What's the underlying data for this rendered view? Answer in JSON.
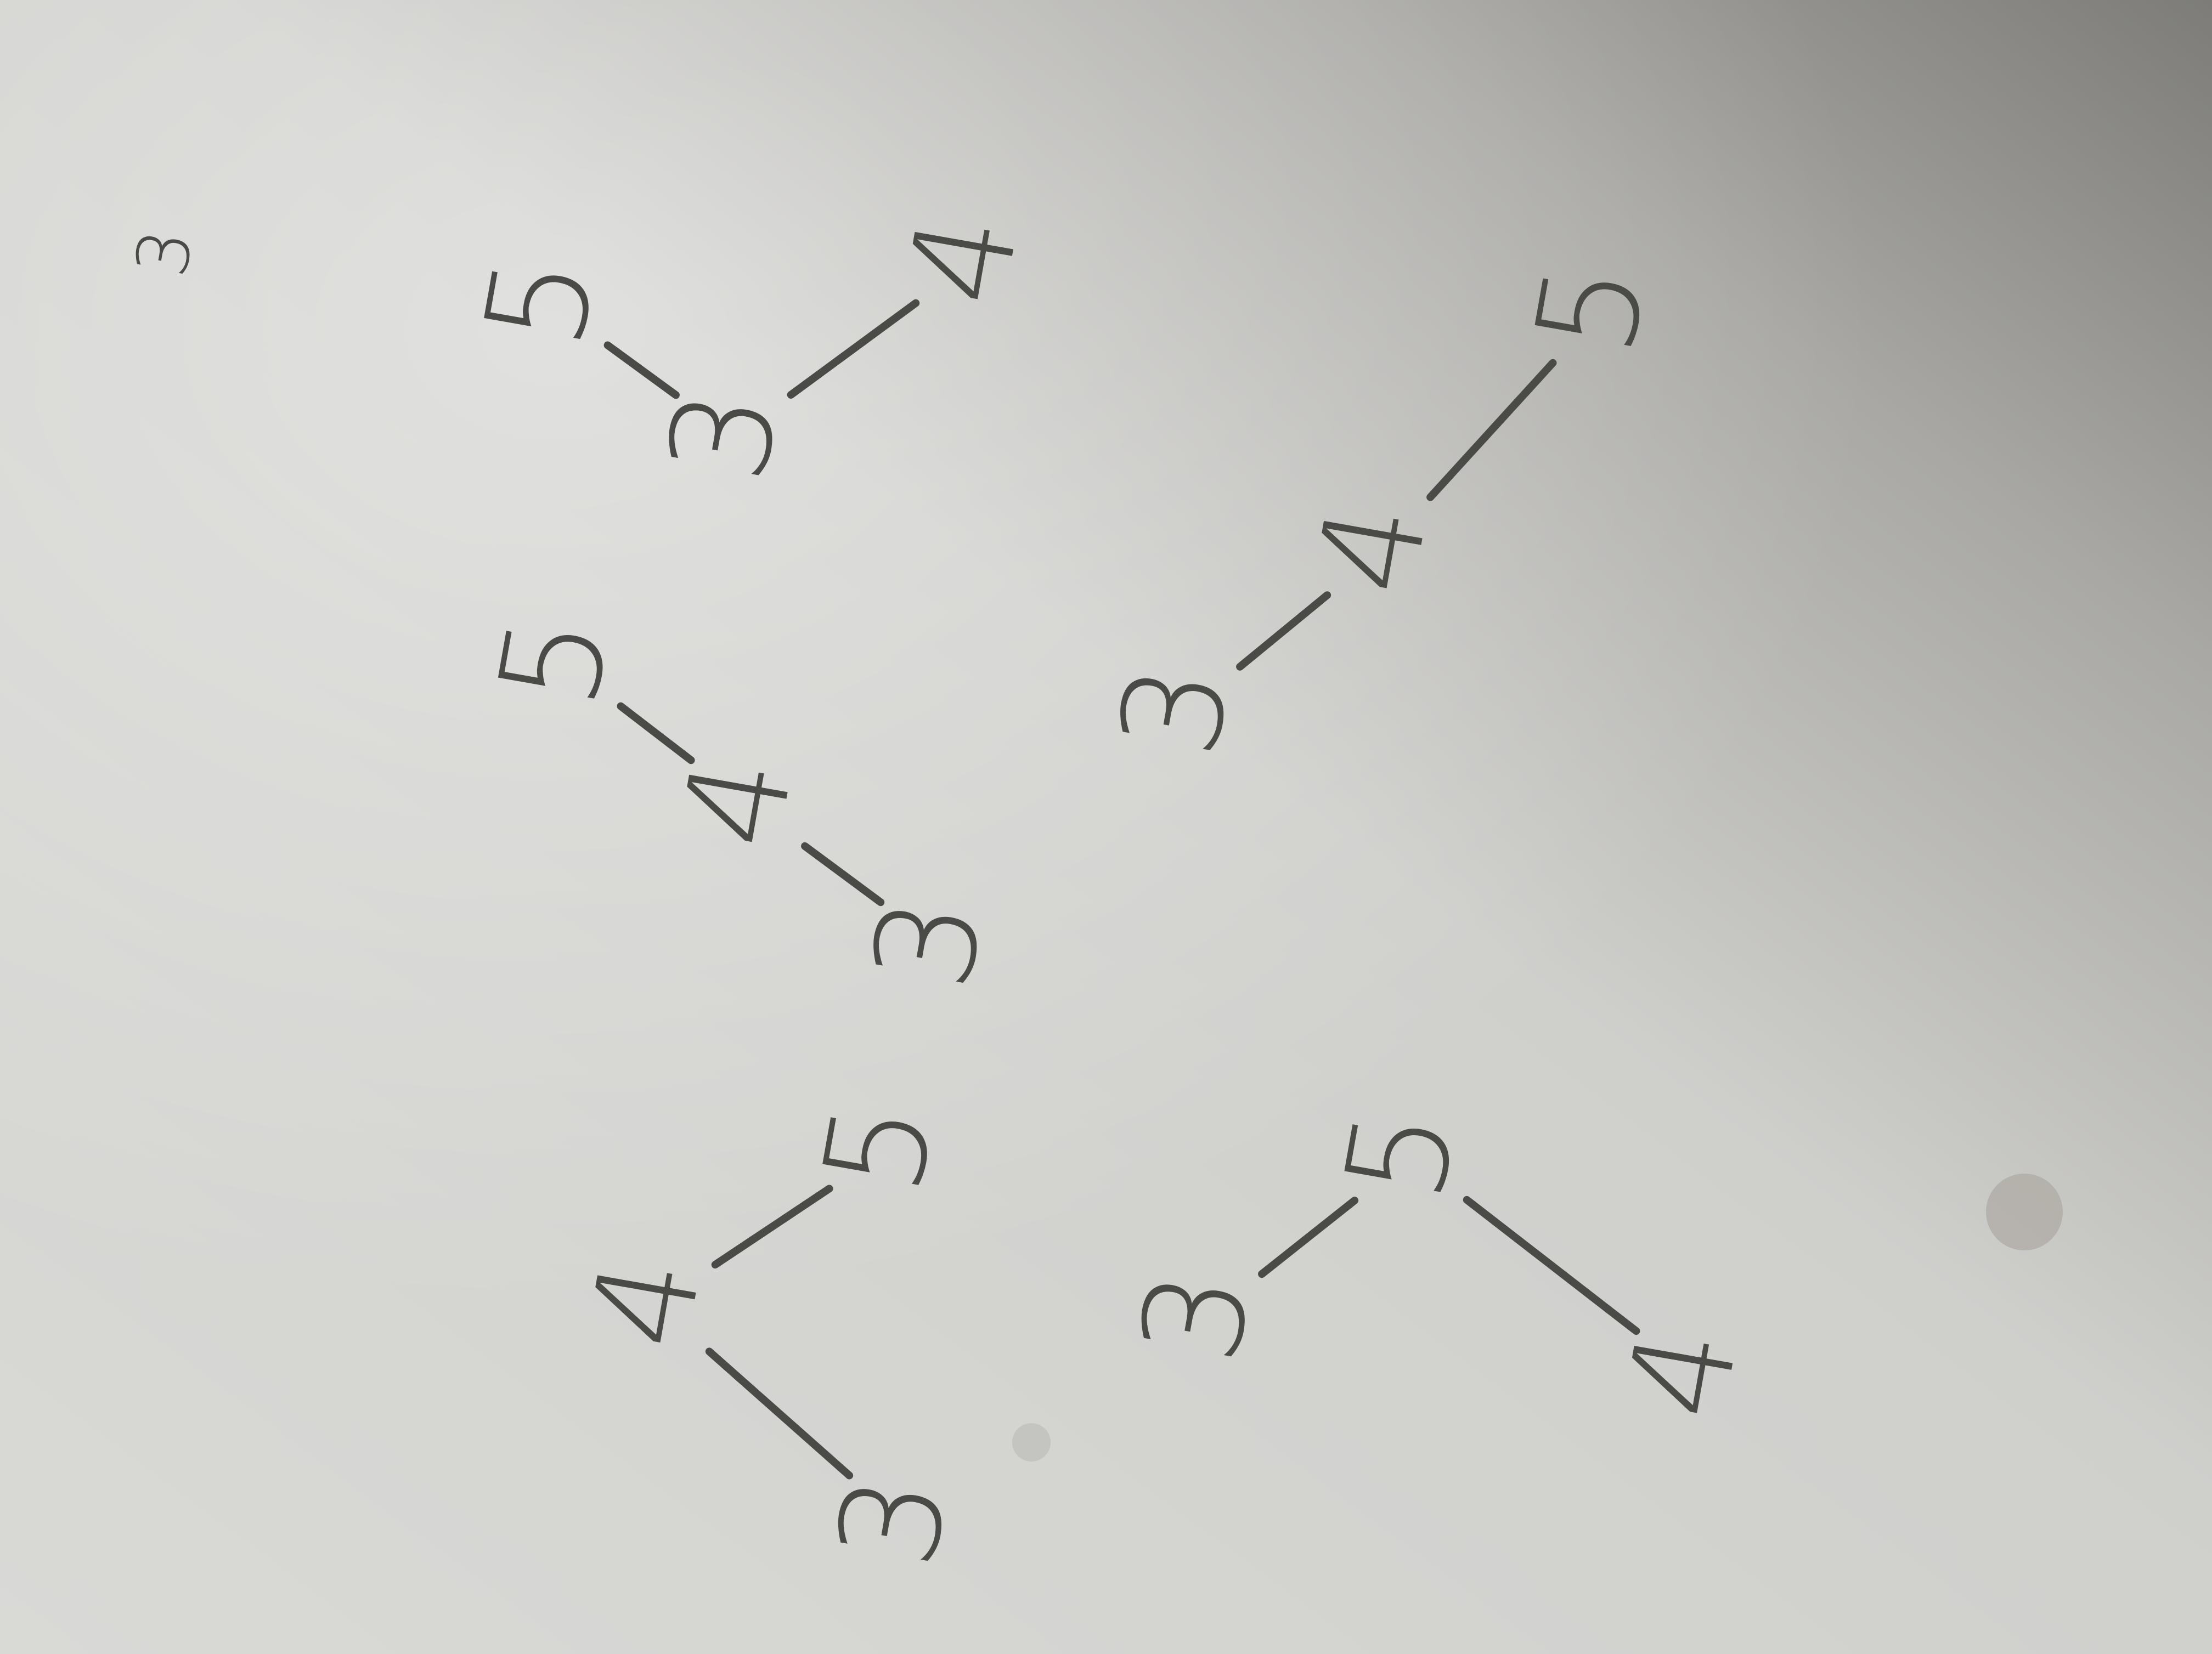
{
  "stray_mark": {
    "label": "3"
  },
  "trees": [
    {
      "nodes": [
        {
          "label": "5"
        },
        {
          "label": "3"
        },
        {
          "label": "4"
        }
      ]
    },
    {
      "nodes": [
        {
          "label": "5"
        },
        {
          "label": "4"
        },
        {
          "label": "3"
        }
      ]
    },
    {
      "nodes": [
        {
          "label": "3"
        },
        {
          "label": "4"
        },
        {
          "label": "5"
        }
      ]
    },
    {
      "nodes": [
        {
          "label": "4"
        },
        {
          "label": "5"
        },
        {
          "label": "3"
        }
      ]
    },
    {
      "nodes": [
        {
          "label": "3"
        },
        {
          "label": "5"
        },
        {
          "label": "4"
        }
      ]
    }
  ]
}
